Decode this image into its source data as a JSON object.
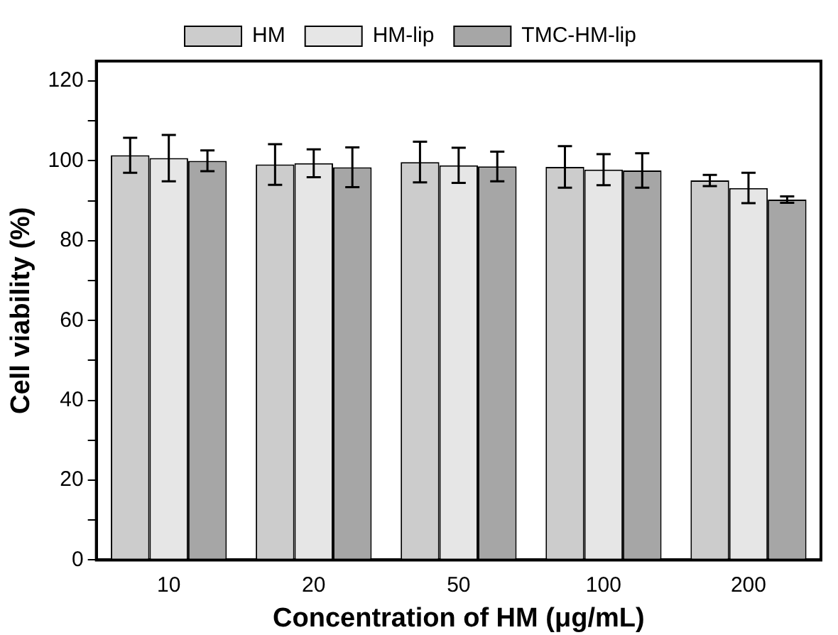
{
  "chart_data": {
    "type": "bar",
    "xlabel": "Concentration of HM (μg/mL)",
    "ylabel": "Cell viability (%)",
    "categories": [
      "10",
      "20",
      "50",
      "100",
      "200"
    ],
    "series": [
      {
        "name": "HM",
        "color": "#cccccc",
        "values": [
          101.4,
          99.1,
          99.7,
          98.5,
          95.1
        ],
        "errors": [
          4.4,
          5.1,
          5.1,
          5.2,
          1.4
        ]
      },
      {
        "name": "HM-lip",
        "color": "#e6e6e6",
        "values": [
          100.7,
          99.4,
          98.9,
          97.8,
          93.2
        ],
        "errors": [
          5.8,
          3.5,
          4.4,
          3.9,
          3.8
        ]
      },
      {
        "name": "TMC-HM-lip",
        "color": "#a6a6a6",
        "values": [
          100,
          98.4,
          98.6,
          97.6,
          90.3
        ],
        "errors": [
          2.6,
          5,
          3.7,
          4.3,
          0.8
        ]
      }
    ],
    "ylim": [
      0,
      125
    ],
    "yticks": [
      0,
      {
        "value": 10,
        "label": null
      },
      20,
      {
        "value": 30,
        "label": null
      },
      40,
      {
        "value": 50,
        "label": null
      },
      60,
      {
        "value": 70,
        "label": null
      },
      80,
      {
        "value": 90,
        "label": null
      },
      100,
      {
        "value": 110,
        "label": null
      },
      120
    ],
    "grid": false,
    "legend": "top"
  }
}
